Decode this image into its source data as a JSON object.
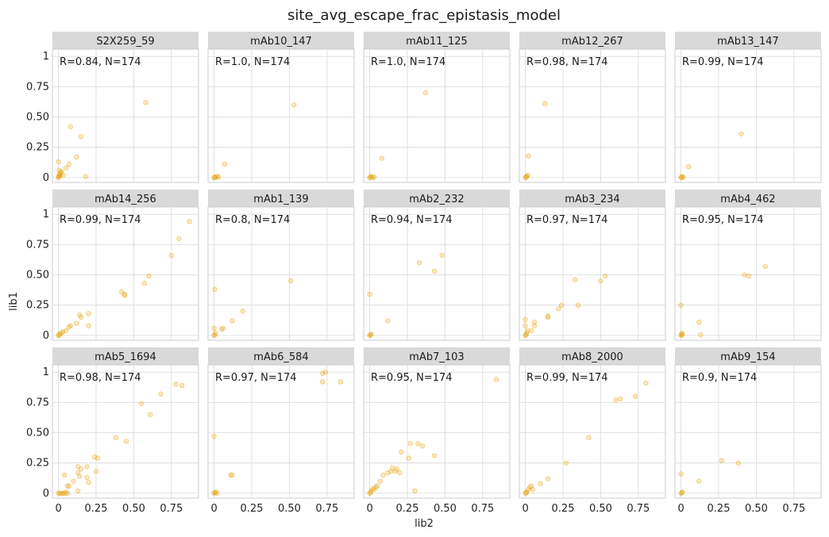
{
  "colors": {
    "point": "#e69f00",
    "strip": "#d9d9d9",
    "grid": "#d9d9d9",
    "border": "#cccccc"
  },
  "chart_data": {
    "type": "scatter",
    "title": "site_avg_escape_frac_epistasis_model",
    "xlabel": "lib2",
    "ylabel": "lib1",
    "xlim": [
      -0.04,
      0.93
    ],
    "ylim": [
      -0.04,
      1.06
    ],
    "xticks": [
      0,
      0.25,
      0.5,
      0.75
    ],
    "xtick_labels": [
      "0",
      "0.25",
      "0.50",
      "0.75"
    ],
    "yticks": [
      0,
      0.25,
      0.5,
      0.75,
      1
    ],
    "ytick_labels": [
      "0",
      "0.25",
      "0.50",
      "0.75",
      "1"
    ],
    "grid": true,
    "panels": [
      {
        "name": "S2X259_59",
        "annotation": "R=0.84, N=174",
        "points": [
          [
            0,
            0
          ],
          [
            0.005,
            0.01
          ],
          [
            0.01,
            0.02
          ],
          [
            0.015,
            0.04
          ],
          [
            0.02,
            0.05
          ],
          [
            0.005,
            0.06
          ],
          [
            0.01,
            0.03
          ],
          [
            0,
            0.13
          ],
          [
            0.05,
            0.08
          ],
          [
            0.07,
            0.11
          ],
          [
            0.08,
            0.42
          ],
          [
            0.12,
            0.17
          ],
          [
            0.15,
            0.34
          ],
          [
            0.18,
            0.01
          ],
          [
            0.58,
            0.62
          ],
          [
            0.03,
            0.02
          ],
          [
            0,
            0.01
          ]
        ]
      },
      {
        "name": "mAb10_147",
        "annotation": "R=1.0, N=174",
        "points": [
          [
            0,
            0
          ],
          [
            0.005,
            0.005
          ],
          [
            0.01,
            0
          ],
          [
            0.02,
            0.01
          ],
          [
            0.03,
            0.005
          ],
          [
            0.07,
            0.11
          ],
          [
            0.53,
            0.6
          ]
        ]
      },
      {
        "name": "mAb11_125",
        "annotation": "R=1.0, N=174",
        "points": [
          [
            0,
            0
          ],
          [
            0.005,
            0.005
          ],
          [
            0.01,
            0.01
          ],
          [
            0.02,
            0
          ],
          [
            0.03,
            0.005
          ],
          [
            0.08,
            0.16
          ],
          [
            0.37,
            0.7
          ]
        ]
      },
      {
        "name": "mAb12_267",
        "annotation": "R=0.98, N=174",
        "points": [
          [
            0,
            0
          ],
          [
            0.005,
            0.005
          ],
          [
            0.01,
            0.01
          ],
          [
            0.02,
            0.18
          ],
          [
            0.015,
            0.02
          ],
          [
            0.13,
            0.61
          ]
        ]
      },
      {
        "name": "mAb13_147",
        "annotation": "R=0.99, N=174",
        "points": [
          [
            0,
            0
          ],
          [
            0.005,
            0.005
          ],
          [
            0.01,
            0.01
          ],
          [
            0.015,
            0
          ],
          [
            0.05,
            0.09
          ],
          [
            0.4,
            0.36
          ]
        ]
      },
      {
        "name": "mAb14_256",
        "annotation": "R=0.99, N=174",
        "points": [
          [
            0,
            0
          ],
          [
            0.005,
            0.005
          ],
          [
            0.01,
            0.01
          ],
          [
            0.02,
            0.02
          ],
          [
            0.03,
            0.03
          ],
          [
            0.05,
            0.04
          ],
          [
            0.08,
            0.08
          ],
          [
            0.07,
            0.07
          ],
          [
            0.12,
            0.1
          ],
          [
            0.14,
            0.17
          ],
          [
            0.15,
            0.15
          ],
          [
            0.2,
            0.18
          ],
          [
            0.2,
            0.08
          ],
          [
            0.42,
            0.36
          ],
          [
            0.44,
            0.33
          ],
          [
            0.44,
            0.34
          ],
          [
            0.57,
            0.43
          ],
          [
            0.6,
            0.49
          ],
          [
            0.75,
            0.66
          ],
          [
            0.8,
            0.8
          ],
          [
            0.87,
            0.94
          ]
        ]
      },
      {
        "name": "mAb1_139",
        "annotation": "R=0.8, N=174",
        "points": [
          [
            0,
            0
          ],
          [
            0.005,
            0.005
          ],
          [
            0.01,
            0.02
          ],
          [
            0,
            0.06
          ],
          [
            0.005,
            0.38
          ],
          [
            0.05,
            0.05
          ],
          [
            0.06,
            0.06
          ],
          [
            0.12,
            0.12
          ],
          [
            0.19,
            0.2
          ],
          [
            0.51,
            0.45
          ]
        ]
      },
      {
        "name": "mAb2_232",
        "annotation": "R=0.94, N=174",
        "points": [
          [
            0,
            0
          ],
          [
            0.005,
            0.005
          ],
          [
            0.01,
            0.01
          ],
          [
            0,
            0.34
          ],
          [
            0.12,
            0.12
          ],
          [
            0.33,
            0.6
          ],
          [
            0.43,
            0.53
          ],
          [
            0.48,
            0.66
          ]
        ]
      },
      {
        "name": "mAb3_234",
        "annotation": "R=0.97, N=174",
        "points": [
          [
            0,
            0
          ],
          [
            0.005,
            0.005
          ],
          [
            0.01,
            0.02
          ],
          [
            0.015,
            0.04
          ],
          [
            0,
            0.13
          ],
          [
            0.04,
            0.04
          ],
          [
            0.06,
            0.08
          ],
          [
            0.06,
            0.11
          ],
          [
            0.15,
            0.16
          ],
          [
            0.15,
            0.15
          ],
          [
            0.22,
            0.22
          ],
          [
            0.24,
            0.25
          ],
          [
            0.33,
            0.46
          ],
          [
            0.35,
            0.25
          ],
          [
            0.5,
            0.45
          ],
          [
            0.53,
            0.49
          ],
          [
            0,
            0.08
          ]
        ]
      },
      {
        "name": "mAb4_462",
        "annotation": "R=0.95, N=174",
        "points": [
          [
            0,
            0
          ],
          [
            0.005,
            0.005
          ],
          [
            0.01,
            0.01
          ],
          [
            0,
            0.25
          ],
          [
            0.005,
            0.02
          ],
          [
            0.12,
            0.11
          ],
          [
            0.13,
            0.005
          ],
          [
            0.42,
            0.5
          ],
          [
            0.45,
            0.49
          ],
          [
            0.56,
            0.57
          ]
        ]
      },
      {
        "name": "mAb5_1694",
        "annotation": "R=0.98, N=174",
        "points": [
          [
            0,
            0
          ],
          [
            0.01,
            0
          ],
          [
            0.02,
            0
          ],
          [
            0.03,
            0
          ],
          [
            0.04,
            0
          ],
          [
            0.05,
            0.01
          ],
          [
            0.06,
            0
          ],
          [
            0.04,
            0.15
          ],
          [
            0.07,
            0.06
          ],
          [
            0.06,
            0.06
          ],
          [
            0.1,
            0.1
          ],
          [
            0.13,
            0.22
          ],
          [
            0.13,
            0.17
          ],
          [
            0.15,
            0.2
          ],
          [
            0.14,
            0.14
          ],
          [
            0.13,
            0.02
          ],
          [
            0.19,
            0.13
          ],
          [
            0.19,
            0.22
          ],
          [
            0.2,
            0.09
          ],
          [
            0.24,
            0.3
          ],
          [
            0.26,
            0.29
          ],
          [
            0.25,
            0.18
          ],
          [
            0.38,
            0.46
          ],
          [
            0.45,
            0.43
          ],
          [
            0.55,
            0.74
          ],
          [
            0.61,
            0.65
          ],
          [
            0.68,
            0.82
          ],
          [
            0.78,
            0.9
          ],
          [
            0.82,
            0.89
          ]
        ]
      },
      {
        "name": "mAb6_584",
        "annotation": "R=0.97, N=174",
        "points": [
          [
            0,
            0
          ],
          [
            0.005,
            0.005
          ],
          [
            0.01,
            0.01
          ],
          [
            0.02,
            0
          ],
          [
            0,
            0.47
          ],
          [
            0.11,
            0.15
          ],
          [
            0.12,
            0.15
          ],
          [
            0.72,
            0.99
          ],
          [
            0.74,
            1.0
          ],
          [
            0.72,
            0.92
          ],
          [
            0.84,
            0.92
          ]
        ]
      },
      {
        "name": "mAb7_103",
        "annotation": "R=0.95, N=174",
        "points": [
          [
            0,
            0
          ],
          [
            0.005,
            0.005
          ],
          [
            0.01,
            0.02
          ],
          [
            0.02,
            0.04
          ],
          [
            0.03,
            0.03
          ],
          [
            0.04,
            0.05
          ],
          [
            0.05,
            0.06
          ],
          [
            0.07,
            0.1
          ],
          [
            0.09,
            0.15
          ],
          [
            0.12,
            0.17
          ],
          [
            0.14,
            0.18
          ],
          [
            0.15,
            0.21
          ],
          [
            0.17,
            0.18
          ],
          [
            0.18,
            0.2
          ],
          [
            0.2,
            0.17
          ],
          [
            0.21,
            0.34
          ],
          [
            0.26,
            0.29
          ],
          [
            0.27,
            0.41
          ],
          [
            0.3,
            0.02
          ],
          [
            0.32,
            0.41
          ],
          [
            0.35,
            0.39
          ],
          [
            0.43,
            0.31
          ],
          [
            0.84,
            0.94
          ]
        ]
      },
      {
        "name": "mAb8_2000",
        "annotation": "R=0.99, N=174",
        "points": [
          [
            0,
            0
          ],
          [
            0.005,
            0.005
          ],
          [
            0.01,
            0.01
          ],
          [
            0.02,
            0.03
          ],
          [
            0.03,
            0.05
          ],
          [
            0.04,
            0.06
          ],
          [
            0.05,
            0.03
          ],
          [
            0.1,
            0.08
          ],
          [
            0.15,
            0.12
          ],
          [
            0.27,
            0.25
          ],
          [
            0.42,
            0.46
          ],
          [
            0.6,
            0.77
          ],
          [
            0.63,
            0.78
          ],
          [
            0.73,
            0.8
          ],
          [
            0.8,
            0.91
          ]
        ]
      },
      {
        "name": "mAb9_154",
        "annotation": "R=0.9, N=174",
        "points": [
          [
            0,
            0
          ],
          [
            0.005,
            0.005
          ],
          [
            0.01,
            0.01
          ],
          [
            0,
            0.16
          ],
          [
            0.12,
            0.1
          ],
          [
            0.27,
            0.27
          ],
          [
            0.38,
            0.25
          ]
        ]
      }
    ]
  }
}
